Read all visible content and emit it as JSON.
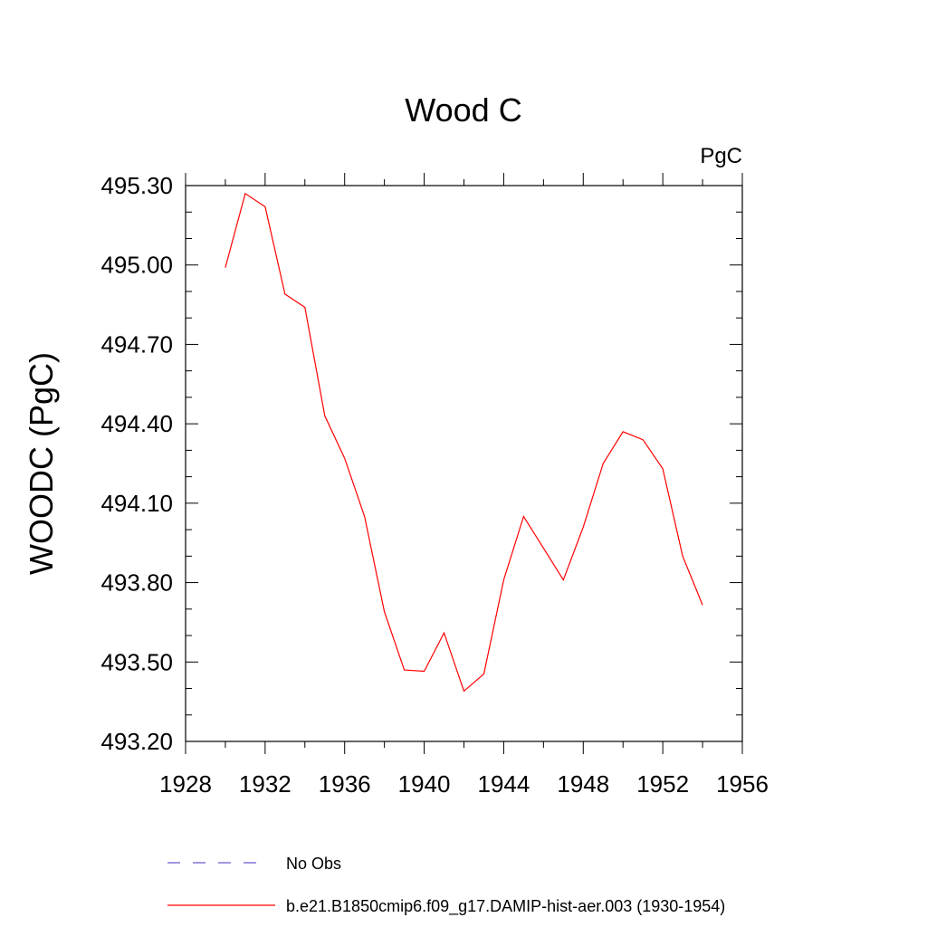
{
  "chart_data": {
    "type": "line",
    "title": "Wood C",
    "units": "PgC",
    "xlabel": "",
    "ylabel": "WOODC  (PgC)",
    "xlim": [
      1928,
      1956
    ],
    "ylim": [
      493.2,
      495.3
    ],
    "x_ticks": [
      1928,
      1932,
      1936,
      1940,
      1944,
      1948,
      1952,
      1956
    ],
    "x_tick_labels": [
      "1928",
      "1932",
      "1936",
      "1940",
      "1944",
      "1948",
      "1952",
      "1956"
    ],
    "y_ticks": [
      493.2,
      493.5,
      493.8,
      494.1,
      494.4,
      494.7,
      495.0,
      495.3
    ],
    "y_tick_labels": [
      "493.20",
      "493.50",
      "493.80",
      "494.10",
      "494.40",
      "494.70",
      "495.00",
      "495.30"
    ],
    "grid": false,
    "legend_position": "bottom",
    "series": [
      {
        "name": "No Obs",
        "color": "#6a5acd",
        "dash": "dashed",
        "x": [],
        "y": []
      },
      {
        "name": "b.e21.B1850cmip6.f09_g17.DAMIP-hist-aer.003 (1930-1954)",
        "color": "#ff0000",
        "dash": "solid",
        "x": [
          1930,
          1931,
          1932,
          1933,
          1934,
          1935,
          1936,
          1937,
          1938,
          1939,
          1940,
          1941,
          1942,
          1943,
          1944,
          1945,
          1946,
          1947,
          1948,
          1949,
          1950,
          1951,
          1952,
          1953,
          1954
        ],
        "y": [
          494.99,
          495.27,
          495.22,
          494.89,
          494.84,
          494.43,
          494.27,
          494.05,
          493.69,
          493.47,
          493.465,
          493.61,
          493.39,
          493.455,
          493.81,
          494.05,
          493.93,
          493.81,
          494.01,
          494.25,
          494.37,
          494.34,
          494.23,
          493.9,
          493.715
        ]
      }
    ]
  }
}
